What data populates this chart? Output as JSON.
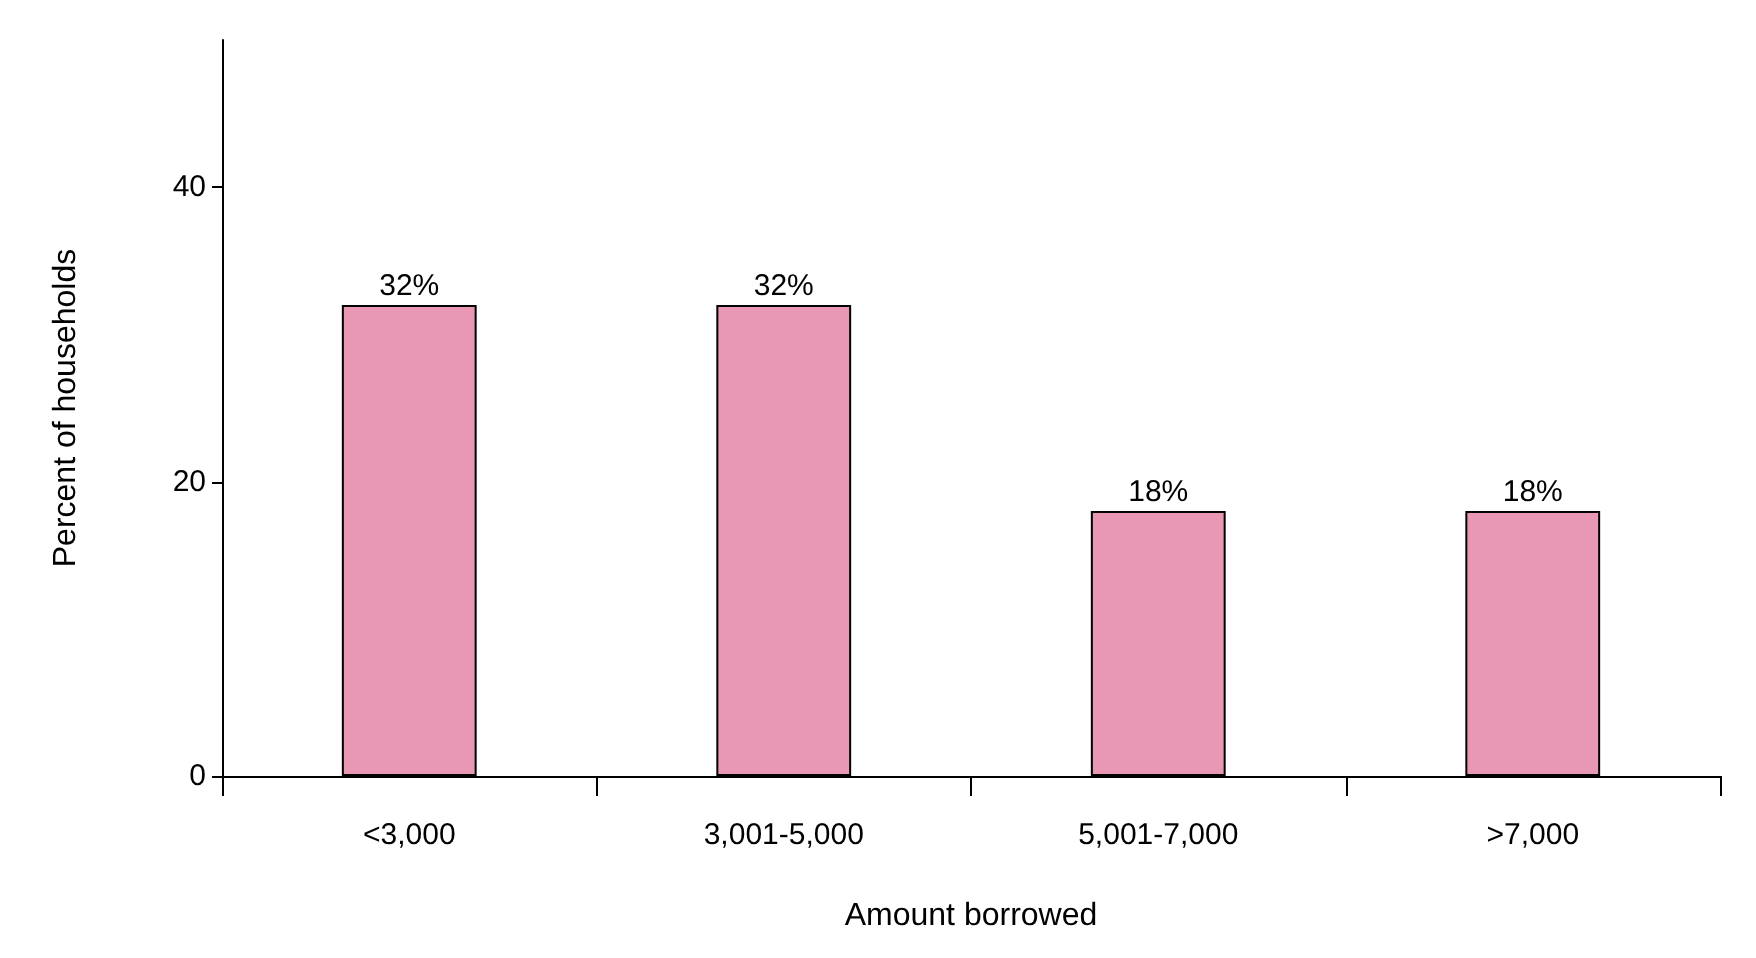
{
  "chart_data": {
    "type": "bar",
    "xlabel": "Amount borrowed",
    "ylabel": "Percent of households",
    "categories": [
      "<3,000",
      "3,001-5,000",
      "5,001-7,000",
      ">7,000"
    ],
    "values": [
      32,
      32,
      18,
      18
    ],
    "value_labels": [
      "32%",
      "32%",
      "18%",
      "18%"
    ],
    "color": "#e898b4",
    "ylim": [
      0,
      50
    ],
    "yticks": [
      0,
      20,
      40
    ],
    "grid": false
  }
}
